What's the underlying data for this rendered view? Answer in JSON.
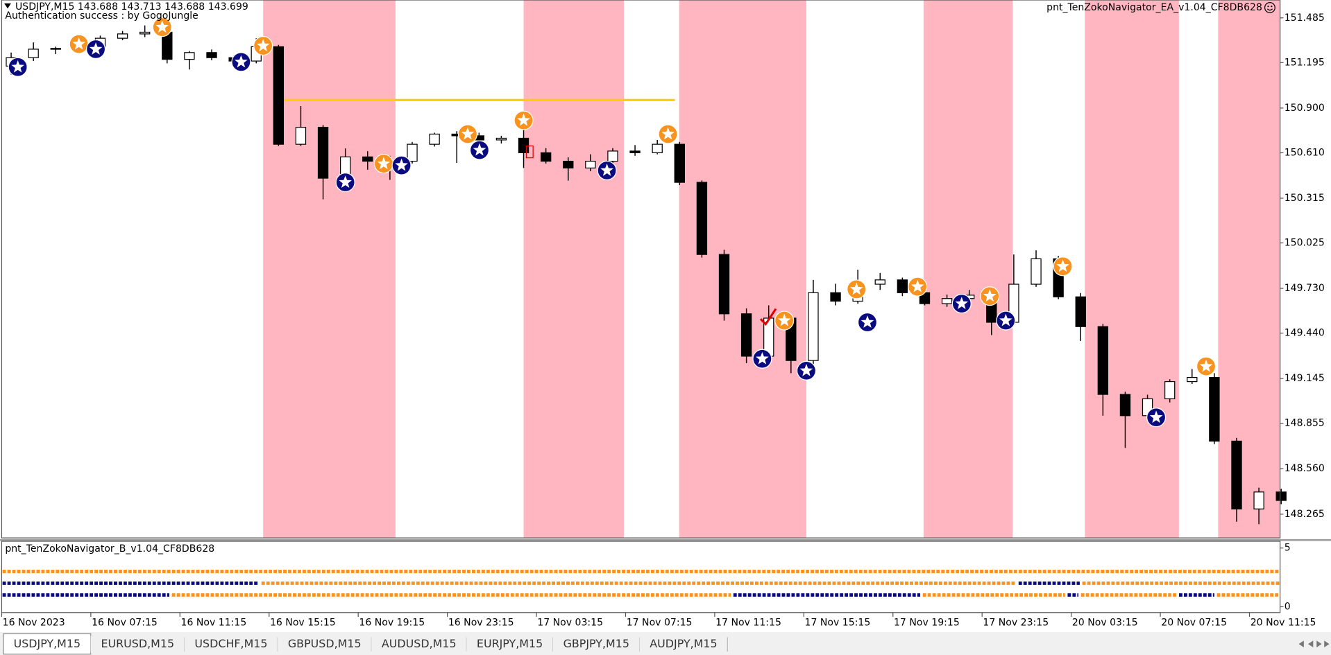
{
  "header": {
    "symbol_line": "USDJPY,M15  143.688 143.713 143.688 143.699",
    "auth": "Authentication success : by GogoJungle",
    "expert": "pnt_TenZokoNavigator_EA_v1.04_CF8DB628"
  },
  "chart_data": {
    "type": "candlestick",
    "xlim": [
      0,
      57.45
    ],
    "ylim": [
      148.111,
      151.601
    ],
    "yticks": [
      151.485,
      151.195,
      {
        "value": 150.9,
        "label": "150.900"
      },
      {
        "value": 150.61,
        "label": "150.610"
      },
      150.315,
      150.025,
      {
        "value": 149.73,
        "label": "149.730"
      },
      {
        "value": 149.44,
        "label": "149.440"
      },
      149.145,
      148.855,
      {
        "value": 148.56,
        "label": "148.560"
      },
      148.265
    ],
    "xticks": [
      {
        "value": 0,
        "label": "16 Nov 2023"
      },
      {
        "value": 4,
        "label": "16 Nov 07:15"
      },
      {
        "value": 8,
        "label": "16 Nov 11:15"
      },
      {
        "value": 12,
        "label": "16 Nov 15:15"
      },
      {
        "value": 16,
        "label": "16 Nov 19:15"
      },
      {
        "value": 20,
        "label": "16 Nov 23:15"
      },
      {
        "value": 24,
        "label": "17 Nov 03:15"
      },
      {
        "value": 28,
        "label": "17 Nov 07:15"
      },
      {
        "value": 32,
        "label": "17 Nov 11:15"
      },
      {
        "value": 36,
        "label": "17 Nov 15:15"
      },
      {
        "value": 40,
        "label": "17 Nov 19:15"
      },
      {
        "value": 44,
        "label": "17 Nov 23:15"
      },
      {
        "value": 48,
        "label": "20 Nov 03:15"
      },
      {
        "value": 52,
        "label": "20 Nov 07:15"
      },
      {
        "value": 56,
        "label": "20 Nov 11:15"
      }
    ],
    "open": [
      151.172,
      151.227,
      151.282,
      151.287,
      151.298,
      151.353,
      151.381,
      151.392,
      151.216,
      151.26,
      151.227,
      151.205,
      151.298,
      150.665,
      150.775,
      150.445,
      150.583,
      150.555,
      150.555,
      150.665,
      150.731,
      150.72,
      150.693,
      150.704,
      150.61,
      150.555,
      150.511,
      150.555,
      150.621,
      150.61,
      150.665,
      150.418,
      149.95,
      149.565,
      149.29,
      149.537,
      149.262,
      149.702,
      149.647,
      149.757,
      149.785,
      149.702,
      149.631,
      149.664,
      149.686,
      149.51,
      149.757,
      149.922,
      149.675,
      149.482,
      149.042,
      148.904,
      149.014,
      149.125,
      149.152,
      148.739,
      148.299,
      148.409
    ],
    "high": [
      151.26,
      151.326,
      151.298,
      151.31,
      151.37,
      151.4,
      151.436,
      151.4,
      151.27,
      151.28,
      151.24,
      151.353,
      151.31,
      150.913,
      150.79,
      150.638,
      150.62,
      150.59,
      150.68,
      150.74,
      150.75,
      150.74,
      150.72,
      150.786,
      150.64,
      150.58,
      150.6,
      150.64,
      150.66,
      150.693,
      150.68,
      150.43,
      149.98,
      149.6,
      149.62,
      149.56,
      149.785,
      149.76,
      149.851,
      149.83,
      149.8,
      149.72,
      149.69,
      149.72,
      149.7,
      149.95,
      149.977,
      149.94,
      149.7,
      149.5,
      149.06,
      149.04,
      149.14,
      149.207,
      149.18,
      148.76,
      148.437,
      148.43
    ],
    "low": [
      151.117,
      151.205,
      151.25,
      151.26,
      151.28,
      151.34,
      151.36,
      151.19,
      151.15,
      151.21,
      151.18,
      151.19,
      150.654,
      150.654,
      150.308,
      150.42,
      150.5,
      150.434,
      150.54,
      150.65,
      150.544,
      150.68,
      150.67,
      150.511,
      150.54,
      150.429,
      150.49,
      150.54,
      150.59,
      150.6,
      150.4,
      149.93,
      149.521,
      149.245,
      149.27,
      149.18,
      149.24,
      149.62,
      149.63,
      149.72,
      149.68,
      149.62,
      149.61,
      149.65,
      149.427,
      149.49,
      149.74,
      149.66,
      149.389,
      148.904,
      148.695,
      148.88,
      148.99,
      149.11,
      148.72,
      148.216,
      148.2,
      148.33
    ],
    "close": [
      151.227,
      151.282,
      151.287,
      151.298,
      151.353,
      151.381,
      151.392,
      151.216,
      151.26,
      151.227,
      151.205,
      151.298,
      150.665,
      150.775,
      150.445,
      150.583,
      150.555,
      150.555,
      150.665,
      150.731,
      150.72,
      150.693,
      150.704,
      150.61,
      150.555,
      150.511,
      150.555,
      150.621,
      150.61,
      150.665,
      150.418,
      149.95,
      149.565,
      149.29,
      149.537,
      149.262,
      149.702,
      149.647,
      149.757,
      149.785,
      149.702,
      149.631,
      149.664,
      149.686,
      149.51,
      149.757,
      149.922,
      149.675,
      149.482,
      149.042,
      148.904,
      149.014,
      149.125,
      149.152,
      148.739,
      148.299,
      148.409,
      148.354
    ],
    "bands": [
      [
        11.81,
        17.75
      ],
      [
        23.5,
        28.0
      ],
      [
        30.48,
        36.19
      ],
      [
        41.45,
        45.45
      ],
      [
        48.69,
        52.91
      ],
      [
        54.67,
        57.45
      ]
    ],
    "band_color": "#ffb6c1",
    "level": {
      "value": 150.952,
      "from": 12.57,
      "to": 30.29,
      "color": "#ffcc00"
    },
    "signals": [
      {
        "color": "#f7931e",
        "x": [
          3.54,
          7.28,
          11.81,
          17.22,
          20.99,
          23.5,
          29.98,
          35.2,
          38.44,
          41.18,
          44.42,
          47.7,
          54.13
        ],
        "y": [
          151.315,
          151.425,
          151.304,
          150.539,
          150.731,
          150.82,
          150.731,
          149.521,
          149.724,
          149.741,
          149.68,
          149.873,
          149.224
        ]
      },
      {
        "color": "#0b0b80",
        "x": [
          0.8,
          4.3,
          10.82,
          15.5,
          18.02,
          21.52,
          27.24,
          34.21,
          36.19,
          38.93,
          43.16,
          45.14,
          51.89
        ],
        "y": [
          151.166,
          151.282,
          151.199,
          150.418,
          150.528,
          150.627,
          150.495,
          149.273,
          149.196,
          149.51,
          149.631,
          149.521,
          148.893
        ]
      }
    ]
  },
  "indicator": {
    "title": "pnt_TenZokoNavigator_B_v1.04_CF8DB628",
    "ylim": [
      -0.5,
      5.57
    ],
    "yticks": [
      5,
      0
    ],
    "rows": [
      {
        "level": 3,
        "segments": [
          {
            "from": 0,
            "to": 57.45,
            "color": "#f7931e"
          }
        ]
      },
      {
        "level": 2,
        "segments": [
          {
            "from": 0,
            "to": 11.62,
            "color": "#0b0b80"
          },
          {
            "from": 11.62,
            "to": 45.6,
            "color": "#f7931e"
          },
          {
            "from": 45.6,
            "to": 48.46,
            "color": "#0b0b80"
          },
          {
            "from": 48.46,
            "to": 57.45,
            "color": "#f7931e"
          }
        ]
      },
      {
        "level": 1,
        "segments": [
          {
            "from": 0,
            "to": 7.6,
            "color": "#0b0b80"
          },
          {
            "from": 7.6,
            "to": 32.8,
            "color": "#f7931e"
          },
          {
            "from": 32.8,
            "to": 41.3,
            "color": "#0b0b80"
          },
          {
            "from": 41.3,
            "to": 47.8,
            "color": "#f7931e"
          },
          {
            "from": 47.8,
            "to": 48.4,
            "color": "#0b0b80"
          },
          {
            "from": 48.4,
            "to": 52.8,
            "color": "#f7931e"
          },
          {
            "from": 52.8,
            "to": 54.5,
            "color": "#0b0b80"
          },
          {
            "from": 54.5,
            "to": 57.45,
            "color": "#f7931e"
          }
        ]
      }
    ]
  },
  "tabs": [
    "USDJPY,M15",
    "EURUSD,M15",
    "USDCHF,M15",
    "GBPUSD,M15",
    "AUDUSD,M15",
    "EURJPY,M15",
    "GBPJPY,M15",
    "AUDJPY,M15"
  ]
}
